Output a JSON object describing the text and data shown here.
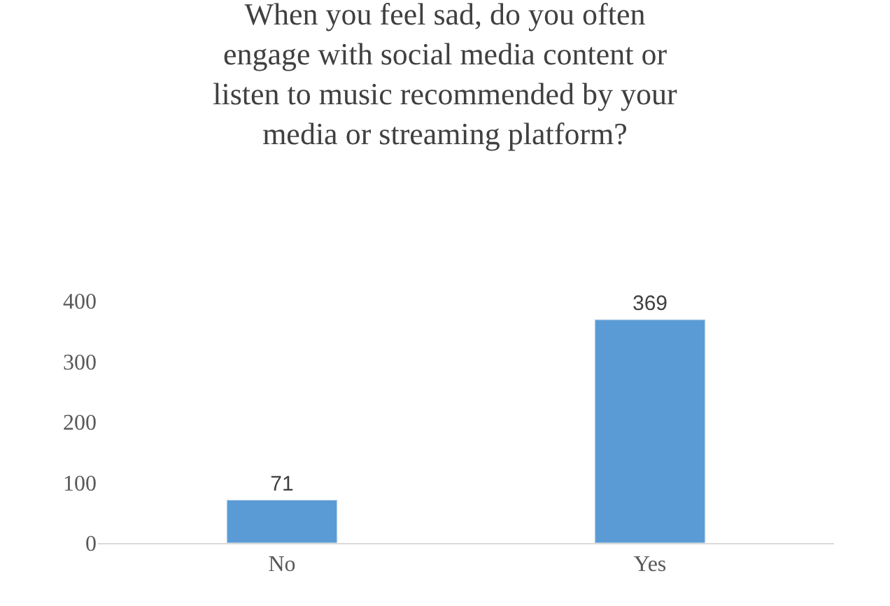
{
  "chart_data": {
    "type": "bar",
    "title": "When you feel sad, do you often engage with social media content or listen to music recommended by your media or streaming platform?",
    "categories": [
      "No",
      "Yes"
    ],
    "values": [
      71,
      369
    ],
    "color": "#5b9bd5",
    "ylim": [
      0,
      400
    ],
    "yticks": [
      0,
      100,
      200,
      300,
      400
    ],
    "data_labels": true
  }
}
